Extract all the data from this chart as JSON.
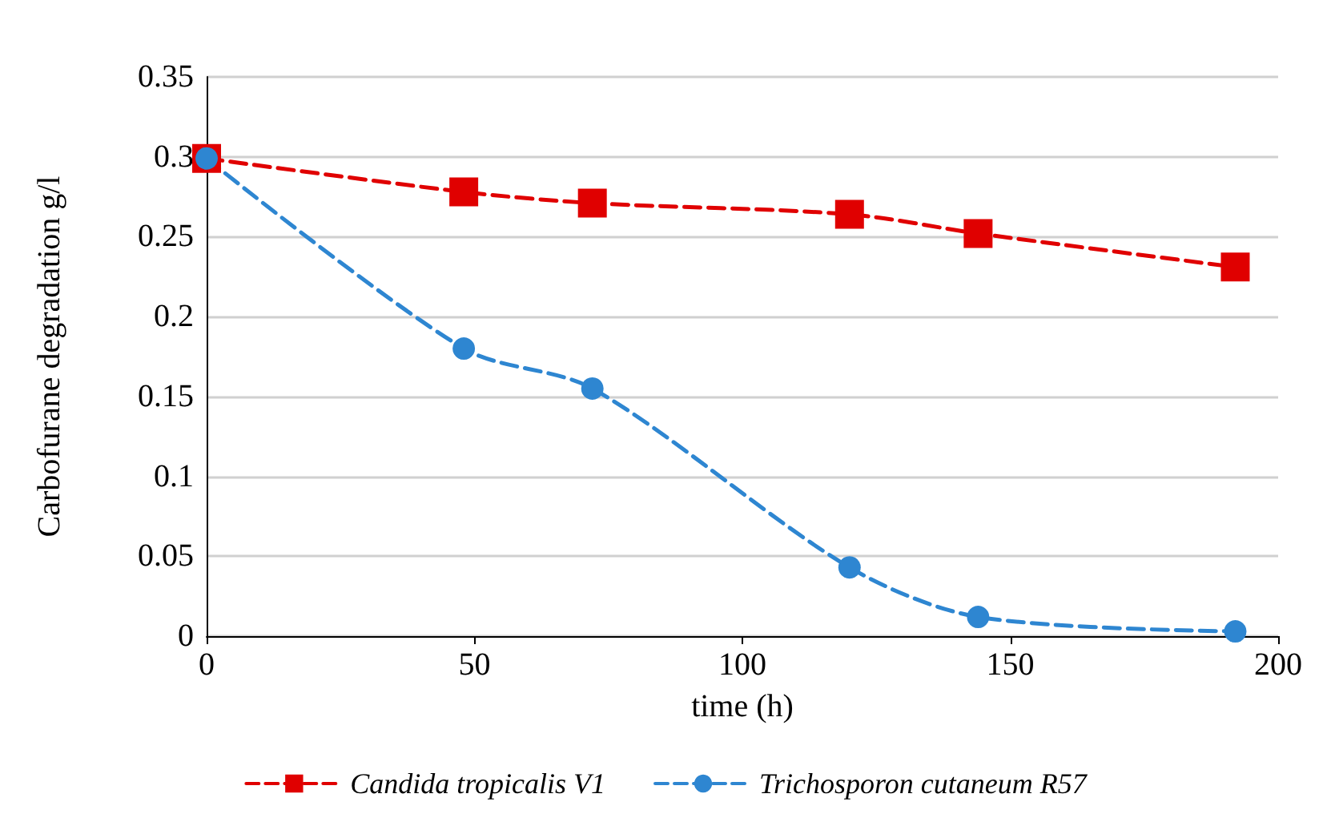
{
  "chart_data": {
    "type": "line",
    "xlabel": "time (h)",
    "ylabel": "Carbofurane degradation g/l",
    "x": [
      0,
      48,
      72,
      120,
      144,
      192
    ],
    "series": [
      {
        "name": "Candida tropicalis V1",
        "color": "#e00000",
        "marker": "square",
        "values": [
          0.299,
          0.278,
          0.271,
          0.264,
          0.252,
          0.231
        ]
      },
      {
        "name": "Trichosporon cutaneum R57",
        "color": "#2e86d1",
        "marker": "circle",
        "values": [
          0.299,
          0.18,
          0.155,
          0.043,
          0.012,
          0.003
        ]
      }
    ],
    "xlim": [
      0,
      200
    ],
    "xticks": [
      0,
      50,
      100,
      150,
      200
    ],
    "ylim": [
      0,
      0.35
    ],
    "yticks": [
      0,
      0.05,
      0.1,
      0.15,
      0.2,
      0.25,
      0.3,
      0.35
    ],
    "grid": "y",
    "legend": "bottom",
    "line_style": "dashed"
  }
}
